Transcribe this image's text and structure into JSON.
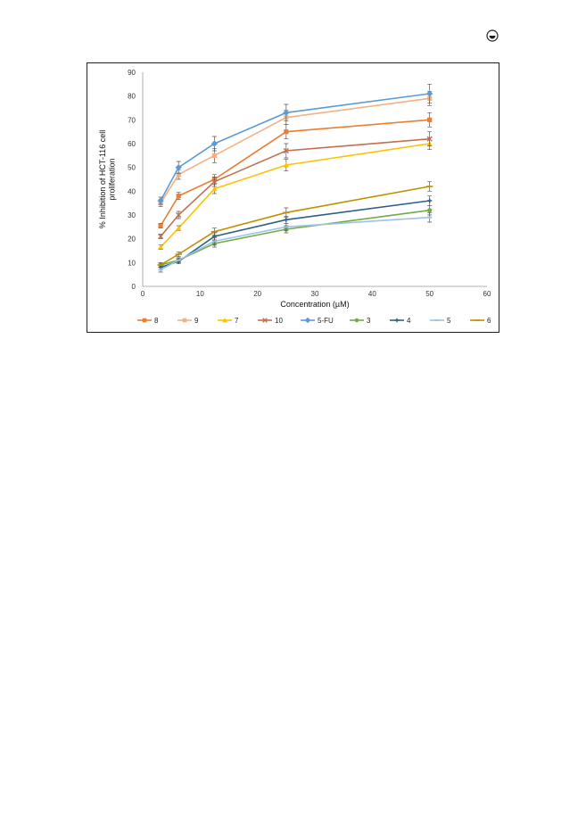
{
  "page": {
    "corner_icon": "circle-dot-icon"
  },
  "chart_data": {
    "type": "line",
    "title": "",
    "xlabel": "Concentration (µM)",
    "ylabel": "% Inhibition of HCT-116 cell proliferation",
    "xlim": [
      0,
      60
    ],
    "ylim": [
      0,
      90
    ],
    "xticks": [
      0,
      10,
      20,
      30,
      40,
      50,
      60
    ],
    "yticks": [
      0,
      10,
      20,
      30,
      40,
      50,
      60,
      70,
      80,
      90
    ],
    "grid": false,
    "legend_position": "bottom",
    "x": [
      3.125,
      6.25,
      12.5,
      25,
      50
    ],
    "series": [
      {
        "name": "8",
        "color": "#ED7D31",
        "marker": "square",
        "values": [
          25.5,
          38,
          45,
          65,
          70
        ],
        "errors": [
          1,
          1.5,
          2,
          3,
          3
        ]
      },
      {
        "name": "9",
        "color": "#F4B183",
        "marker": "square",
        "values": [
          35,
          47,
          55,
          71,
          79
        ],
        "errors": [
          1.5,
          2,
          3,
          3,
          3
        ]
      },
      {
        "name": "7",
        "color": "#FFC000",
        "marker": "triangle",
        "values": [
          16.5,
          24.5,
          41,
          51,
          60
        ],
        "errors": [
          1,
          1,
          2,
          2.5,
          2.5
        ]
      },
      {
        "name": "10",
        "color": "#C0704F",
        "marker": "x",
        "values": [
          21,
          30,
          44,
          57,
          62
        ],
        "errors": [
          1,
          1.5,
          2,
          3,
          3
        ]
      },
      {
        "name": "5-FU",
        "color": "#5B9BD5",
        "marker": "diamond",
        "values": [
          36,
          50,
          60,
          73,
          81
        ],
        "errors": [
          1.5,
          2.5,
          3,
          3.5,
          4
        ]
      },
      {
        "name": "3",
        "color": "#70AD47",
        "marker": "circle",
        "values": [
          9,
          11,
          18,
          24,
          32
        ],
        "errors": [
          1,
          1,
          1.5,
          1.5,
          2
        ]
      },
      {
        "name": "4",
        "color": "#2E5F8A",
        "marker": "plus",
        "values": [
          8,
          10.5,
          21,
          28,
          36
        ],
        "errors": [
          1,
          1,
          1.5,
          1.5,
          2
        ]
      },
      {
        "name": "5",
        "color": "#9DC3E6",
        "marker": "dash",
        "values": [
          7,
          11,
          19,
          25,
          29
        ],
        "errors": [
          1,
          1,
          1.5,
          1.5,
          2
        ]
      },
      {
        "name": "6",
        "color": "#BF9000",
        "marker": "line",
        "values": [
          9,
          13.5,
          23,
          31,
          42
        ],
        "errors": [
          1,
          1,
          1.5,
          2,
          2
        ]
      }
    ]
  }
}
